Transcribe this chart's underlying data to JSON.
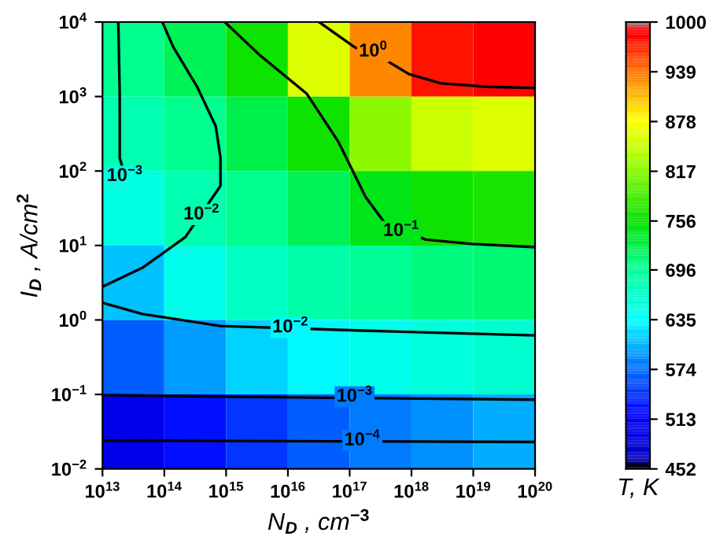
{
  "chart_data": {
    "type": "heatmap",
    "xlabel": "N$_{D}$ , cm$^{−3}$",
    "ylabel": "I$_{D}$ , A/cm$^{2}$",
    "clabel": "T, K",
    "log": "xy",
    "x": [
      31600000000000.0,
      316000000000000.0,
      3160000000000000.0,
      3.16e+16,
      3.16e+17,
      3.16e+18,
      3.16e+19
    ],
    "y": [
      3162,
      316,
      31.6,
      3.16,
      0.316,
      0.0316
    ],
    "cells": [
      [
        700,
        720,
        760,
        860,
        930,
        975,
        990
      ],
      [
        680,
        700,
        725,
        760,
        820,
        850,
        860
      ],
      [
        650,
        680,
        700,
        720,
        745,
        760,
        765
      ],
      [
        610,
        645,
        670,
        685,
        695,
        705,
        710
      ],
      [
        565,
        595,
        615,
        630,
        645,
        655,
        660
      ],
      [
        500,
        525,
        545,
        565,
        580,
        590,
        600
      ]
    ],
    "clim": [
      452,
      1000
    ],
    "cticks": [
      452,
      513,
      574,
      635,
      696,
      756,
      817,
      878,
      939,
      1000
    ],
    "xlim": [
      10000000000000.0,
      1e+20
    ],
    "ylim": [
      0.01,
      10000.0
    ],
    "xticks": [
      {
        "value": 10000000000000.0,
        "label": "10$^{13}$"
      },
      {
        "value": 100000000000000.0,
        "label": "10$^{14}$"
      },
      {
        "value": 1000000000000000.0,
        "label": "10$^{15}$"
      },
      {
        "value": 1e+16,
        "label": "10$^{16}$"
      },
      {
        "value": 1e+17,
        "label": "10$^{17}$"
      },
      {
        "value": 1e+18,
        "label": "10$^{18}$"
      },
      {
        "value": 1e+19,
        "label": "10$^{19}$"
      },
      {
        "value": 1e+20,
        "label": "10$^{20}$"
      }
    ],
    "yticks": [
      {
        "value": 0.01,
        "label": "10$^{−2}$"
      },
      {
        "value": 0.1,
        "label": "10$^{−1}$"
      },
      {
        "value": 1.0,
        "label": "10$^{0}$"
      },
      {
        "value": 10.0,
        "label": "10$^{1}$"
      },
      {
        "value": 100.0,
        "label": "10$^{2}$"
      },
      {
        "value": 1000.0,
        "label": "10$^{3}$"
      },
      {
        "value": 10000.0,
        "label": "10$^{4}$"
      }
    ],
    "series": [
      {
        "type": "line",
        "color": "#000000",
        "x": [
          3.2e+16,
          1.2e+17,
          3.8e+17,
          9.1e+17,
          3e+18,
          1.7e+19,
          1e+20
        ],
        "values": [
          10000.0,
          4600.0,
          3100.0,
          2000.0,
          1500.0,
          1350.0,
          1300.0
        ]
      },
      {
        "type": "line",
        "color": "#000000",
        "x": [
          950000000000000.0,
          3500000000000000.0,
          2e+16,
          6.6e+16,
          1.8e+17,
          3.8e+17,
          1.7e+18,
          9.5e+18,
          1e+20
        ],
        "values": [
          10000.0,
          3600.0,
          1100.0,
          245,
          45,
          19.5,
          12,
          10.5,
          9.5
        ]
      },
      {
        "type": "line",
        "color": "#000000",
        "x": [
          93000000000000.0,
          140000000000000.0,
          340000000000000.0,
          680000000000000.0,
          810000000000000.0,
          810000000000000.0,
          220000000000000.0,
          44000000000000.0,
          10000000000000.0
        ],
        "values": [
          10000.0,
          4600.0,
          1350.0,
          400,
          150,
          63,
          13,
          5,
          2.8
        ]
      },
      {
        "type": "line",
        "color": "#000000",
        "x": [
          18000000000000.0,
          19000000000000.0,
          19000000000000.0,
          23000000000000.0
        ],
        "values": [
          10000.0,
          1100.0,
          150,
          85
        ]
      },
      {
        "type": "line",
        "color": "#000000",
        "x": [
          10000000000000.0,
          44000000000000.0,
          810000000000000.0,
          1.6e+17,
          1e+20
        ],
        "values": [
          1.7,
          1.2,
          0.83,
          0.72,
          0.62
        ]
      },
      {
        "type": "line",
        "color": "#000000",
        "x": [
          10000000000000.0,
          1400000000000000.0,
          1e+20
        ],
        "values": [
          0.098,
          0.093,
          0.085
        ]
      },
      {
        "type": "line",
        "color": "#000000",
        "x": [
          10000000000000.0,
          1e+20
        ],
        "values": [
          0.024,
          0.023
        ]
      }
    ],
    "annotations": [
      {
        "text": "10$^{0}$",
        "x": 2.4e+17,
        "y": 4000
      },
      {
        "text": "10$^{−1}$",
        "x": 6.8e+17,
        "y": 15.5
      },
      {
        "text": "10$^{−2}$",
        "x": 400000000000000.0,
        "y": 26
      },
      {
        "text": "10$^{−3}$",
        "x": 23000000000000.0,
        "y": 85
      },
      {
        "text": "10$^{−2}$",
        "x": 1.1e+16,
        "y": 0.79
      },
      {
        "text": "10$^{−3}$",
        "x": 1.2e+17,
        "y": 0.093
      },
      {
        "text": "10$^{−4}$",
        "x": 1.6e+17,
        "y": 0.024
      }
    ]
  }
}
